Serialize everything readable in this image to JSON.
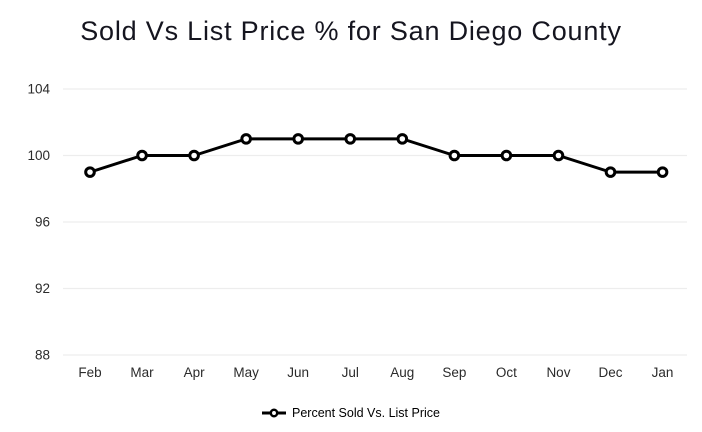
{
  "chart_data": {
    "type": "line",
    "title": "Sold Vs List Price % for San Diego County",
    "categories": [
      "Feb",
      "Mar",
      "Apr",
      "May",
      "Jun",
      "Jul",
      "Aug",
      "Sep",
      "Oct",
      "Nov",
      "Dec",
      "Jan"
    ],
    "series": [
      {
        "name": "Percent Sold Vs. List Price",
        "values": [
          99,
          100,
          100,
          101,
          101,
          101,
          101,
          100,
          100,
          100,
          99,
          99
        ]
      }
    ],
    "xlabel": "",
    "ylabel": "",
    "ylim": [
      88,
      104
    ],
    "yticks": [
      104,
      100,
      96,
      92,
      88
    ],
    "grid": "horizontal",
    "legend_position": "bottom",
    "marker": "hollow-circle",
    "colors": {
      "line": "#000000",
      "marker_fill": "#ffffff",
      "grid": "#ededed",
      "title_text": "#15151f",
      "axis_text": "#2b2b2b"
    }
  }
}
